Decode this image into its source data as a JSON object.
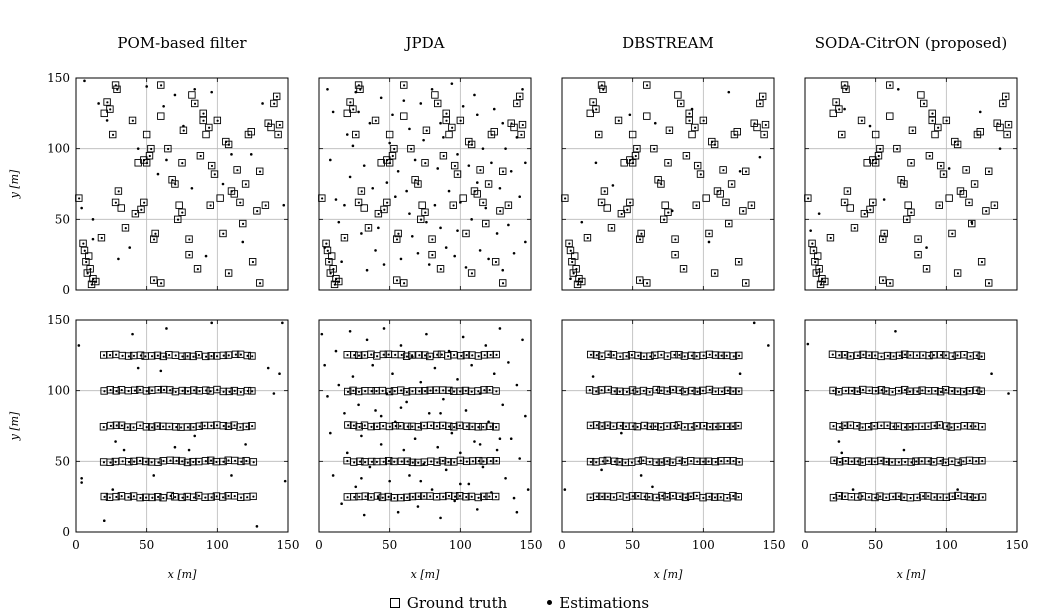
{
  "chart_data": {
    "type": "scatter",
    "titles": [
      "POM-based filter",
      "JPDA",
      "DBSTREAM",
      "SODA-CitrON (proposed)"
    ],
    "xlabel": "x [m]",
    "ylabel": "y [m]",
    "xlim": [
      0,
      150
    ],
    "ylim": [
      0,
      150
    ],
    "x_ticks": [
      "0",
      "50",
      "100",
      "150"
    ],
    "y_ticks": [
      "0",
      "50",
      "100",
      "150"
    ],
    "grid": true,
    "legend": {
      "position": "bottom-center",
      "entries": [
        "Ground truth",
        "Estimations"
      ]
    },
    "top_row_ground_truth": [
      [
        2,
        65
      ],
      [
        5,
        33
      ],
      [
        6,
        28
      ],
      [
        7,
        20
      ],
      [
        8,
        12
      ],
      [
        9,
        24
      ],
      [
        10,
        15
      ],
      [
        11,
        4
      ],
      [
        12,
        8
      ],
      [
        14,
        6
      ],
      [
        18,
        37
      ],
      [
        20,
        125
      ],
      [
        22,
        133
      ],
      [
        24,
        128
      ],
      [
        26,
        110
      ],
      [
        28,
        62
      ],
      [
        30,
        70
      ],
      [
        32,
        58
      ],
      [
        28,
        145
      ],
      [
        29,
        142
      ],
      [
        35,
        44
      ],
      [
        40,
        120
      ],
      [
        42,
        54
      ],
      [
        44,
        90
      ],
      [
        46,
        57
      ],
      [
        48,
        62
      ],
      [
        48,
        92
      ],
      [
        50,
        90
      ],
      [
        52,
        95
      ],
      [
        50,
        110
      ],
      [
        53,
        100
      ],
      [
        55,
        36
      ],
      [
        56,
        40
      ],
      [
        55,
        7
      ],
      [
        60,
        5
      ],
      [
        60,
        123
      ],
      [
        60,
        145
      ],
      [
        65,
        100
      ],
      [
        68,
        78
      ],
      [
        70,
        75
      ],
      [
        72,
        50
      ],
      [
        73,
        60
      ],
      [
        75,
        55
      ],
      [
        75,
        90
      ],
      [
        76,
        113
      ],
      [
        80,
        36
      ],
      [
        80,
        25
      ],
      [
        82,
        138
      ],
      [
        84,
        132
      ],
      [
        86,
        15
      ],
      [
        88,
        95
      ],
      [
        90,
        120
      ],
      [
        90,
        125
      ],
      [
        92,
        110
      ],
      [
        94,
        115
      ],
      [
        95,
        60
      ],
      [
        96,
        88
      ],
      [
        98,
        82
      ],
      [
        100,
        120
      ],
      [
        102,
        65
      ],
      [
        104,
        40
      ],
      [
        106,
        105
      ],
      [
        108,
        103
      ],
      [
        108,
        12
      ],
      [
        110,
        70
      ],
      [
        112,
        68
      ],
      [
        114,
        85
      ],
      [
        116,
        62
      ],
      [
        118,
        47
      ],
      [
        120,
        75
      ],
      [
        122,
        110
      ],
      [
        124,
        112
      ],
      [
        125,
        20
      ],
      [
        128,
        56
      ],
      [
        130,
        84
      ],
      [
        134,
        60
      ],
      [
        136,
        118
      ],
      [
        138,
        115
      ],
      [
        140,
        132
      ],
      [
        142,
        137
      ],
      [
        143,
        110
      ],
      [
        144,
        117
      ],
      [
        130,
        5
      ]
    ],
    "top_row_estimations": {
      "POM-based filter": [
        [
          4,
          58
        ],
        [
          6,
          148
        ],
        [
          12,
          36
        ],
        [
          16,
          132
        ],
        [
          22,
          120
        ],
        [
          30,
          22
        ],
        [
          38,
          30
        ],
        [
          44,
          100
        ],
        [
          50,
          144
        ],
        [
          62,
          130
        ],
        [
          70,
          138
        ],
        [
          76,
          116
        ],
        [
          84,
          142
        ],
        [
          92,
          24
        ],
        [
          104,
          75
        ],
        [
          110,
          96
        ],
        [
          124,
          96
        ],
        [
          132,
          132
        ],
        [
          147,
          60
        ],
        [
          12,
          50
        ],
        [
          64,
          92
        ],
        [
          96,
          140
        ],
        [
          118,
          34
        ],
        [
          58,
          82
        ],
        [
          82,
          72
        ]
      ],
      "JPDA": [
        [
          4,
          30
        ],
        [
          6,
          142
        ],
        [
          8,
          92
        ],
        [
          10,
          126
        ],
        [
          12,
          64
        ],
        [
          14,
          48
        ],
        [
          16,
          20
        ],
        [
          20,
          110
        ],
        [
          22,
          80
        ],
        [
          24,
          102
        ],
        [
          26,
          140
        ],
        [
          30,
          40
        ],
        [
          32,
          88
        ],
        [
          34,
          14
        ],
        [
          36,
          118
        ],
        [
          38,
          72
        ],
        [
          40,
          28
        ],
        [
          44,
          136
        ],
        [
          46,
          18
        ],
        [
          48,
          76
        ],
        [
          52,
          124
        ],
        [
          54,
          66
        ],
        [
          56,
          84
        ],
        [
          58,
          22
        ],
        [
          60,
          134
        ],
        [
          62,
          70
        ],
        [
          64,
          114
        ],
        [
          66,
          38
        ],
        [
          68,
          92
        ],
        [
          70,
          26
        ],
        [
          72,
          132
        ],
        [
          74,
          106
        ],
        [
          76,
          48
        ],
        [
          78,
          18
        ],
        [
          80,
          142
        ],
        [
          82,
          60
        ],
        [
          84,
          86
        ],
        [
          86,
          44
        ],
        [
          88,
          108
        ],
        [
          90,
          30
        ],
        [
          92,
          70
        ],
        [
          94,
          146
        ],
        [
          96,
          24
        ],
        [
          98,
          96
        ],
        [
          100,
          62
        ],
        [
          102,
          130
        ],
        [
          104,
          16
        ],
        [
          106,
          88
        ],
        [
          108,
          50
        ],
        [
          110,
          138
        ],
        [
          112,
          76
        ],
        [
          114,
          28
        ],
        [
          116,
          100
        ],
        [
          118,
          58
        ],
        [
          120,
          22
        ],
        [
          122,
          90
        ],
        [
          124,
          128
        ],
        [
          126,
          40
        ],
        [
          128,
          72
        ],
        [
          130,
          14
        ],
        [
          132,
          100
        ],
        [
          134,
          46
        ],
        [
          136,
          84
        ],
        [
          138,
          26
        ],
        [
          140,
          108
        ],
        [
          142,
          66
        ],
        [
          144,
          142
        ],
        [
          146,
          34
        ],
        [
          18,
          60
        ],
        [
          28,
          126
        ],
        [
          42,
          44
        ],
        [
          50,
          104
        ],
        [
          64,
          54
        ],
        [
          86,
          118
        ],
        [
          98,
          42
        ],
        [
          112,
          124
        ],
        [
          130,
          118
        ],
        [
          146,
          90
        ]
      ],
      "DBSTREAM": [
        [
          6,
          8
        ],
        [
          14,
          48
        ],
        [
          24,
          90
        ],
        [
          48,
          124
        ],
        [
          66,
          118
        ],
        [
          92,
          128
        ],
        [
          126,
          84
        ],
        [
          140,
          94
        ],
        [
          36,
          74
        ],
        [
          78,
          56
        ],
        [
          104,
          34
        ],
        [
          118,
          140
        ]
      ],
      "SODA-CitrON (proposed)": [
        [
          4,
          42
        ],
        [
          10,
          54
        ],
        [
          28,
          128
        ],
        [
          46,
          116
        ],
        [
          66,
          142
        ],
        [
          86,
          30
        ],
        [
          102,
          86
        ],
        [
          124,
          126
        ],
        [
          138,
          100
        ],
        [
          56,
          64
        ],
        [
          118,
          48
        ]
      ]
    },
    "bottom_row_rows_y": [
      25,
      50,
      75,
      100,
      125
    ],
    "bottom_row_x_range": [
      20,
      127
    ],
    "bottom_row_estimations": {
      "POM-based filter": [
        [
          2,
          132
        ],
        [
          4,
          38
        ],
        [
          4,
          35
        ],
        [
          20,
          8
        ],
        [
          26,
          30
        ],
        [
          28,
          64
        ],
        [
          34,
          58
        ],
        [
          40,
          140
        ],
        [
          44,
          116
        ],
        [
          55,
          40
        ],
        [
          60,
          114
        ],
        [
          64,
          144
        ],
        [
          70,
          60
        ],
        [
          80,
          58
        ],
        [
          84,
          68
        ],
        [
          96,
          148
        ],
        [
          110,
          40
        ],
        [
          120,
          62
        ],
        [
          128,
          4
        ],
        [
          136,
          116
        ],
        [
          140,
          98
        ],
        [
          144,
          112
        ],
        [
          146,
          148
        ],
        [
          148,
          36
        ]
      ],
      "JPDA": [
        [
          2,
          140
        ],
        [
          4,
          118
        ],
        [
          6,
          96
        ],
        [
          8,
          70
        ],
        [
          10,
          40
        ],
        [
          12,
          128
        ],
        [
          14,
          104
        ],
        [
          16,
          20
        ],
        [
          18,
          84
        ],
        [
          20,
          56
        ],
        [
          22,
          142
        ],
        [
          24,
          110
        ],
        [
          26,
          32
        ],
        [
          28,
          90
        ],
        [
          30,
          68
        ],
        [
          32,
          12
        ],
        [
          34,
          136
        ],
        [
          36,
          46
        ],
        [
          38,
          118
        ],
        [
          40,
          86
        ],
        [
          42,
          24
        ],
        [
          44,
          62
        ],
        [
          46,
          144
        ],
        [
          48,
          98
        ],
        [
          50,
          36
        ],
        [
          52,
          112
        ],
        [
          54,
          78
        ],
        [
          56,
          14
        ],
        [
          58,
          132
        ],
        [
          60,
          58
        ],
        [
          62,
          92
        ],
        [
          64,
          40
        ],
        [
          66,
          124
        ],
        [
          68,
          66
        ],
        [
          70,
          18
        ],
        [
          72,
          106
        ],
        [
          74,
          48
        ],
        [
          76,
          140
        ],
        [
          78,
          84
        ],
        [
          80,
          30
        ],
        [
          82,
          116
        ],
        [
          84,
          60
        ],
        [
          86,
          10
        ],
        [
          88,
          94
        ],
        [
          90,
          44
        ],
        [
          92,
          128
        ],
        [
          94,
          70
        ],
        [
          96,
          22
        ],
        [
          98,
          108
        ],
        [
          100,
          56
        ],
        [
          102,
          138
        ],
        [
          104,
          86
        ],
        [
          106,
          34
        ],
        [
          108,
          118
        ],
        [
          110,
          64
        ],
        [
          112,
          16
        ],
        [
          114,
          98
        ],
        [
          116,
          46
        ],
        [
          118,
          132
        ],
        [
          120,
          78
        ],
        [
          122,
          28
        ],
        [
          124,
          112
        ],
        [
          126,
          58
        ],
        [
          128,
          144
        ],
        [
          130,
          90
        ],
        [
          132,
          38
        ],
        [
          134,
          120
        ],
        [
          136,
          66
        ],
        [
          138,
          24
        ],
        [
          140,
          104
        ],
        [
          142,
          52
        ],
        [
          144,
          136
        ],
        [
          146,
          82
        ],
        [
          148,
          30
        ],
        [
          30,
          38
        ],
        [
          44,
          82
        ],
        [
          58,
          88
        ],
        [
          72,
          36
        ],
        [
          86,
          84
        ],
        [
          100,
          34
        ],
        [
          114,
          62
        ],
        [
          128,
          66
        ],
        [
          140,
          14
        ]
      ],
      "DBSTREAM": [
        [
          2,
          30
        ],
        [
          22,
          110
        ],
        [
          28,
          44
        ],
        [
          42,
          70
        ],
        [
          56,
          40
        ],
        [
          64,
          32
        ],
        [
          126,
          112
        ],
        [
          136,
          148
        ],
        [
          146,
          132
        ]
      ],
      "SODA-CitrON (proposed)": [
        [
          2,
          133
        ],
        [
          24,
          64
        ],
        [
          26,
          56
        ],
        [
          34,
          30
        ],
        [
          64,
          142
        ],
        [
          70,
          58
        ],
        [
          108,
          30
        ],
        [
          132,
          112
        ],
        [
          144,
          98
        ]
      ]
    }
  }
}
